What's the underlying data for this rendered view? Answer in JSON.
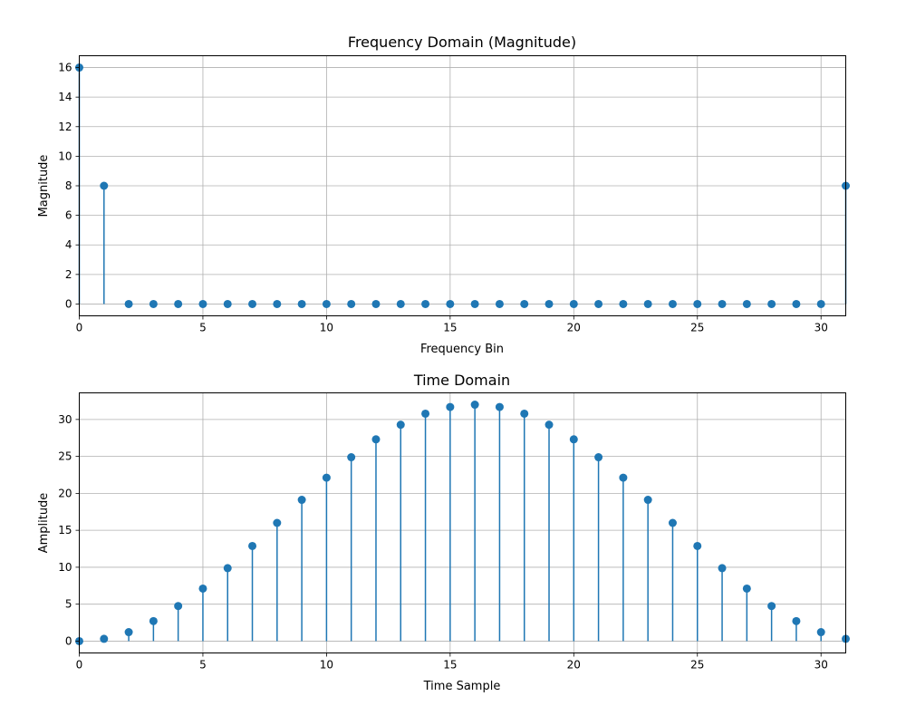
{
  "chart_data": [
    {
      "type": "stem",
      "title": "Frequency Domain (Magnitude)",
      "xlabel": "Frequency Bin",
      "ylabel": "Magnitude",
      "xlim": [
        0,
        31
      ],
      "ylim": [
        -0.8,
        16.8
      ],
      "xticks": [
        0,
        5,
        10,
        15,
        20,
        25,
        30
      ],
      "yticks": [
        0,
        2,
        4,
        6,
        8,
        10,
        12,
        14,
        16
      ],
      "grid": true,
      "color": "#1f77b4",
      "x": [
        0,
        1,
        2,
        3,
        4,
        5,
        6,
        7,
        8,
        9,
        10,
        11,
        12,
        13,
        14,
        15,
        16,
        17,
        18,
        19,
        20,
        21,
        22,
        23,
        24,
        25,
        26,
        27,
        28,
        29,
        30,
        31
      ],
      "values": [
        16,
        8,
        0,
        0,
        0,
        0,
        0,
        0,
        0,
        0,
        0,
        0,
        0,
        0,
        0,
        0,
        0,
        0,
        0,
        0,
        0,
        0,
        0,
        0,
        0,
        0,
        0,
        0,
        0,
        0,
        0,
        8
      ]
    },
    {
      "type": "stem",
      "title": "Time Domain",
      "xlabel": "Time Sample",
      "ylabel": "Amplitude",
      "xlim": [
        0,
        31
      ],
      "ylim": [
        -1.6,
        33.6
      ],
      "xticks": [
        0,
        5,
        10,
        15,
        20,
        25,
        30
      ],
      "yticks": [
        0,
        5,
        10,
        15,
        20,
        25,
        30
      ],
      "grid": true,
      "color": "#1f77b4",
      "x": [
        0,
        1,
        2,
        3,
        4,
        5,
        6,
        7,
        8,
        9,
        10,
        11,
        12,
        13,
        14,
        15,
        16,
        17,
        18,
        19,
        20,
        21,
        22,
        23,
        24,
        25,
        26,
        27,
        28,
        29,
        30,
        31
      ],
      "values": [
        0,
        0.31,
        1.22,
        2.71,
        4.75,
        7.11,
        9.88,
        12.88,
        16.0,
        19.12,
        22.12,
        24.89,
        27.31,
        29.29,
        30.78,
        31.69,
        32.0,
        31.69,
        30.78,
        29.29,
        27.31,
        24.89,
        22.12,
        19.12,
        16.0,
        12.88,
        9.88,
        7.11,
        4.75,
        2.71,
        1.22,
        0.31
      ]
    }
  ]
}
